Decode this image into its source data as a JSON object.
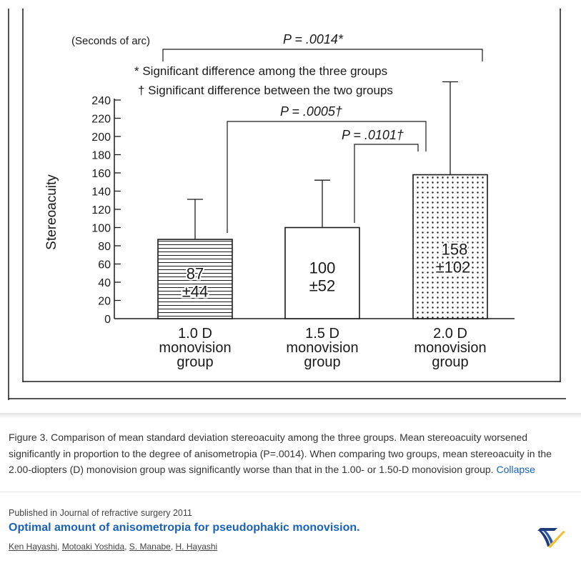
{
  "figure": {
    "units_label": "(Seconds of arc)",
    "y_axis_label": "Stereoacuity",
    "legend": {
      "asterisk": "* Significant difference among the three groups",
      "dagger": "† Significant difference between the two groups"
    },
    "annotations": {
      "p_overall": "P = .0014*",
      "p_1_vs_3": "P = .0005†",
      "p_2_vs_3": "P = .0101†"
    }
  },
  "chart_data": {
    "type": "bar",
    "ylabel": "Stereoacuity",
    "units": "(Seconds of arc)",
    "ylim": [
      0,
      240
    ],
    "yticks": [
      "0",
      "20",
      "40",
      "60",
      "80",
      "100",
      "120",
      "140",
      "160",
      "180",
      "200",
      "220",
      "240"
    ],
    "categories": [
      [
        "1.0 D",
        "monovision",
        "group"
      ],
      [
        "1.5 D",
        "monovision",
        "group"
      ],
      [
        "2.0 D",
        "monovision",
        "group"
      ]
    ],
    "values": [
      87,
      100,
      158
    ],
    "errors": [
      44,
      52,
      102
    ],
    "value_labels": [
      "87",
      "100",
      "158"
    ],
    "error_labels": [
      "±44",
      "±52",
      "±102"
    ],
    "patterns": [
      "horizontal-lines",
      "plain",
      "dots"
    ]
  },
  "caption": {
    "text": "Figure 3. Comparison of mean standard deviation stereoacuity among the three groups. Mean stereoacuity worsened significantly in proportion to the degree of anisometropia (P=.0014). When comparing two groups, mean stereoacuity in the 2.00-diopters (D) monovision group was significantly worse than that in the 1.00- or 1.50-D monovision group.",
    "collapse_label": "Collapse"
  },
  "paper": {
    "published": "Published in Journal of refractive surgery 2011",
    "title": "Optimal amount of anisometropia for pseudophakic monovision.",
    "authors": [
      "Ken Hayashi",
      "Motoaki Yoshida",
      "S. Manabe",
      "H. Hayashi"
    ]
  },
  "icons": {
    "logo": "semantic-scholar-logo-icon"
  },
  "colors": {
    "link": "#1a62b5",
    "ink": "#1a1a1a"
  }
}
